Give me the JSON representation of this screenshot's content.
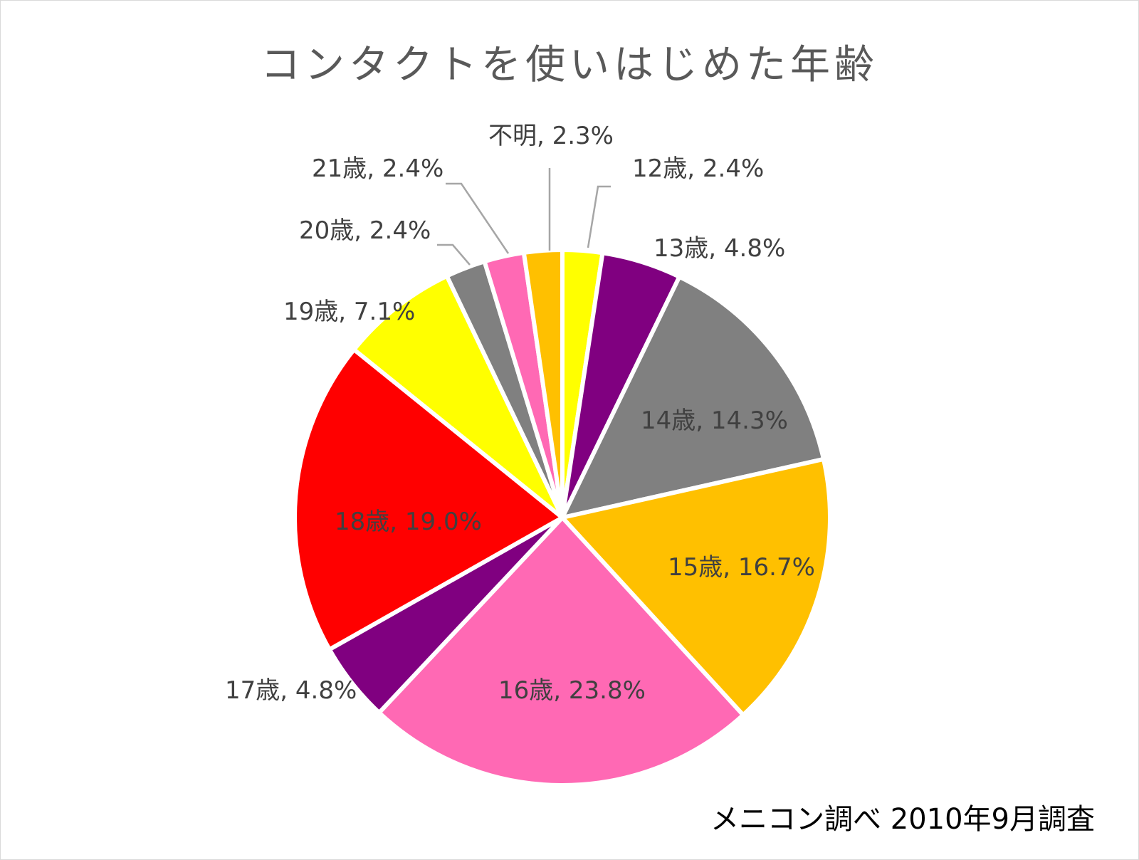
{
  "chart_data": {
    "type": "pie",
    "title": "コンタクトを使いはじめた年齢",
    "source_note": "メニコン調べ 2010年9月調査",
    "slices": [
      {
        "label": "12歳, 2.4%",
        "value": 2.4,
        "color": "#FFFF00"
      },
      {
        "label": "13歳, 4.8%",
        "value": 4.8,
        "color": "#800080"
      },
      {
        "label": "14歳, 14.3%",
        "value": 14.3,
        "color": "#808080"
      },
      {
        "label": "15歳, 16.7%",
        "value": 16.7,
        "color": "#FFC000"
      },
      {
        "label": "16歳, 23.8%",
        "value": 23.8,
        "color": "#FF69B4"
      },
      {
        "label": "17歳, 4.8%",
        "value": 4.8,
        "color": "#800080"
      },
      {
        "label": "18歳, 19.0%",
        "value": 19.0,
        "color": "#FF0000"
      },
      {
        "label": "19歳, 7.1%",
        "value": 7.1,
        "color": "#FFFF00"
      },
      {
        "label": "20歳, 2.4%",
        "value": 2.4,
        "color": "#808080"
      },
      {
        "label": "21歳, 2.4%",
        "value": 2.4,
        "color": "#FF69B4"
      },
      {
        "label": "不明, 2.3%",
        "value": 2.3,
        "color": "#FFC000"
      }
    ]
  }
}
